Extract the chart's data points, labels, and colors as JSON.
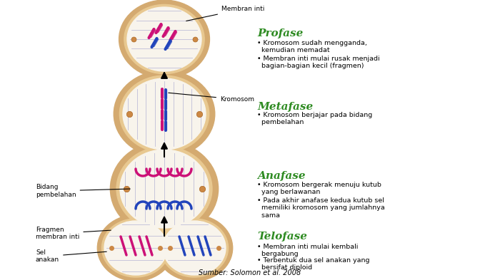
{
  "bg_color": "#ffffff",
  "green_color": "#2E8B22",
  "pink_color": "#CC1177",
  "blue_color": "#2244BB",
  "orange_color": "#CC8844",
  "tan_color": "#D4AA70",
  "cream_color": "#F8F4EC",
  "spindle_color": "#9999CC",
  "gray_color": "#888888",
  "phases": [
    "Profase",
    "Metafase",
    "Anafase",
    "Telofase"
  ],
  "source_text": "Sumber: Solomon et al. 2008",
  "label_membran": "Membran inti",
  "label_kromosom": "Kromosom",
  "label_bidang": "Bidang\npembelahan",
  "label_fragmen": "Fragmen\nmembran inti",
  "label_sel_anakan": "Sel\nanakan"
}
